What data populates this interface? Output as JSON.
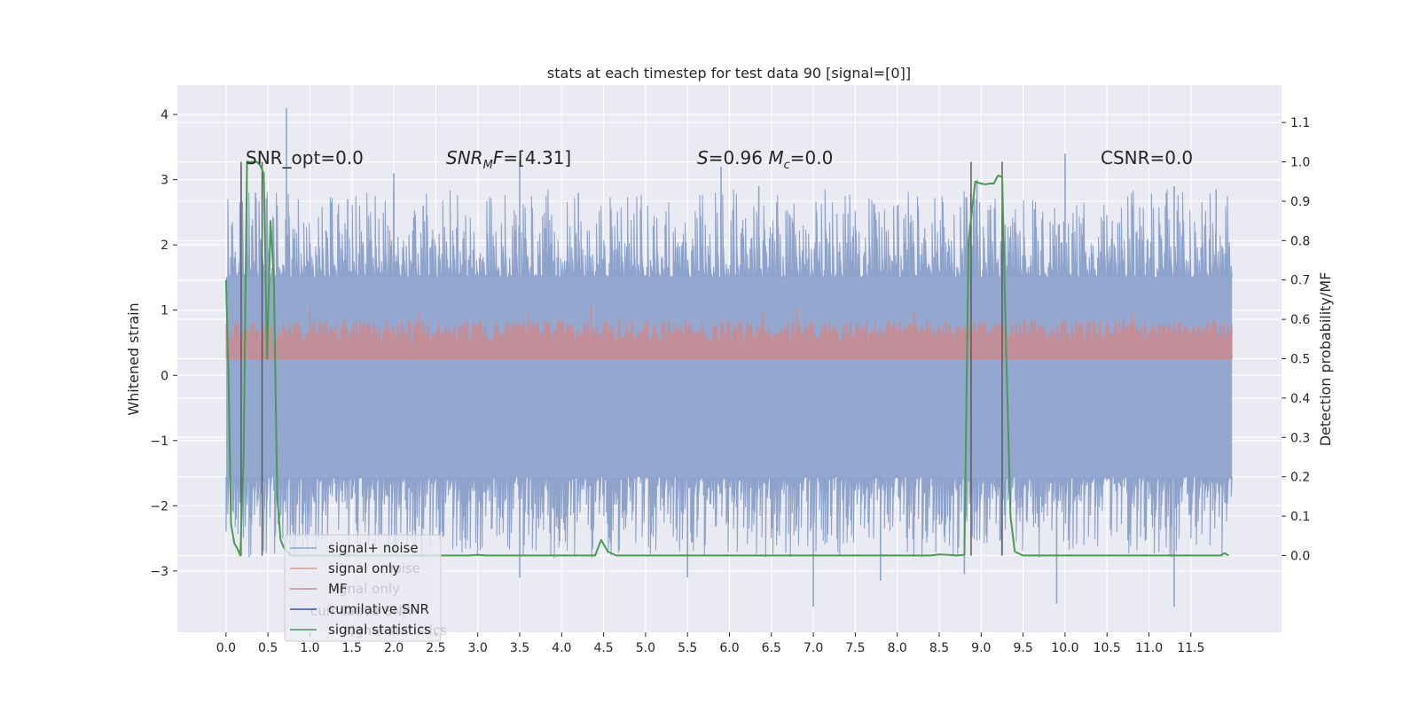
{
  "chart_data": {
    "type": "line",
    "title": "stats at each timestep for test data 90 [signal=[0]]",
    "ylabel": "Whitened strain",
    "y2label": "Detection probability/MF",
    "xlim": [
      -0.58,
      12.58
    ],
    "ylim": [
      -3.94,
      4.45
    ],
    "y2lim": [
      -0.195,
      1.195
    ],
    "x_ticks": [
      0.0,
      0.5,
      1.0,
      1.5,
      2.0,
      2.5,
      3.0,
      3.5,
      4.0,
      4.5,
      5.0,
      5.5,
      6.0,
      6.5,
      7.0,
      7.5,
      8.0,
      8.5,
      9.0,
      9.5,
      10.0,
      10.5,
      11.0,
      11.5
    ],
    "x_tick_labels": [
      "0.0",
      "0.5",
      "1.0",
      "1.5",
      "2.0",
      "2.5",
      "3.0",
      "3.5",
      "4.0",
      "4.5",
      "5.0",
      "5.5",
      "6.0",
      "6.5",
      "7.0",
      "7.5",
      "8.0",
      "8.5",
      "9.0",
      "9.5",
      "10.0",
      "10.5",
      "11.0",
      "11.5"
    ],
    "y_ticks": [
      -3,
      -2,
      -1,
      0,
      1,
      2,
      3,
      4
    ],
    "y_tick_labels": [
      "−3",
      "−2",
      "−1",
      "0",
      "1",
      "2",
      "3",
      "4"
    ],
    "y2_ticks": [
      0.0,
      0.1,
      0.2,
      0.3,
      0.4,
      0.5,
      0.6,
      0.7,
      0.8,
      0.9,
      1.0,
      1.1
    ],
    "y2_tick_labels": [
      "0.0",
      "0.1",
      "0.2",
      "0.3",
      "0.4",
      "0.5",
      "0.6",
      "0.7",
      "0.8",
      "0.9",
      "1.0",
      "1.1"
    ],
    "grid": true,
    "legend_position": "lower-left",
    "legend": [
      {
        "label": "signal+ noise",
        "color": "#8ea3cc"
      },
      {
        "label": "signal only",
        "color": "#dd9d82"
      },
      {
        "label": "MF",
        "color": "#c98b8f"
      },
      {
        "label": "cumilative SNR",
        "color": "#3653a0"
      },
      {
        "label": "signal statistics",
        "color": "#4a9a52"
      }
    ],
    "legend_ghost_labels": [
      "noise",
      "signal only",
      "cumilative SNR",
      "signal statistics"
    ],
    "annotations": [
      {
        "text": "SNR_opt=0.0",
        "x": 0.2,
        "y": 3.25
      },
      {
        "text": "SNR_MF=[4.31]",
        "x": 2.6,
        "y": 3.25
      },
      {
        "text": "S=0.96   M_c=0.0",
        "x": 5.6,
        "y": 3.25
      },
      {
        "text": "CSNR=0.0",
        "x": 10.4,
        "y": 3.25
      }
    ],
    "series": [
      {
        "name": "signal+ noise",
        "axis": "left",
        "color": "#8ea3cc",
        "x_range": [
          0.0,
          11.99
        ],
        "envelope_upper": 1.5,
        "envelope_lower": -1.55,
        "spike_peaks": [
          {
            "x": 0.18,
            "y": 3.2
          },
          {
            "x": 0.25,
            "y": 3.3
          },
          {
            "x": 0.35,
            "y": 2.8
          },
          {
            "x": 0.72,
            "y": 4.1
          },
          {
            "x": 1.45,
            "y": 2.7
          },
          {
            "x": 2.0,
            "y": 3.1
          },
          {
            "x": 2.35,
            "y": 2.6
          },
          {
            "x": 3.5,
            "y": 3.3
          },
          {
            "x": 4.2,
            "y": 2.8
          },
          {
            "x": 5.9,
            "y": 3.2
          },
          {
            "x": 6.35,
            "y": 2.9
          },
          {
            "x": 8.95,
            "y": 3.0
          },
          {
            "x": 10.0,
            "y": 3.4
          },
          {
            "x": 11.3,
            "y": 2.9
          },
          {
            "x": 11.8,
            "y": 2.85
          }
        ],
        "dip_troughs": [
          {
            "x": 0.12,
            "y": -2.2
          },
          {
            "x": 3.5,
            "y": -3.1
          },
          {
            "x": 5.5,
            "y": -3.1
          },
          {
            "x": 7.0,
            "y": -3.55
          },
          {
            "x": 7.8,
            "y": -3.15
          },
          {
            "x": 8.8,
            "y": -3.05
          },
          {
            "x": 9.9,
            "y": -3.5
          },
          {
            "x": 11.3,
            "y": -3.55
          }
        ]
      },
      {
        "name": "MF",
        "axis": "right",
        "color": "#c98b8f",
        "x_range": [
          0.0,
          11.99
        ],
        "baseline": 0.5,
        "typical_max": 0.6,
        "spike_peaks": [
          {
            "x": 1.0,
            "y": 0.63
          },
          {
            "x": 2.3,
            "y": 0.62
          },
          {
            "x": 3.6,
            "y": 0.62
          },
          {
            "x": 4.35,
            "y": 0.63
          },
          {
            "x": 6.4,
            "y": 0.62
          },
          {
            "x": 6.8,
            "y": 0.63
          },
          {
            "x": 8.2,
            "y": 0.62
          },
          {
            "x": 10.8,
            "y": 0.62
          }
        ]
      },
      {
        "name": "signal statistics",
        "axis": "right",
        "color": "#4a9a52",
        "x": [
          0.0,
          0.03,
          0.06,
          0.1,
          0.13,
          0.17,
          0.21,
          0.25,
          0.29,
          0.33,
          0.37,
          0.41,
          0.45,
          0.49,
          0.53,
          0.57,
          0.61,
          0.65,
          0.69,
          0.73,
          0.77,
          0.81,
          0.85,
          0.9,
          1.0,
          1.5,
          2.0,
          2.5,
          2.9,
          3.0,
          3.1,
          3.2,
          4.0,
          4.4,
          4.47,
          4.55,
          4.65,
          5.0,
          6.0,
          7.0,
          8.0,
          8.4,
          8.5,
          8.6,
          8.7,
          8.8,
          8.85,
          8.93,
          9.0,
          9.05,
          9.1,
          9.15,
          9.2,
          9.25,
          9.3,
          9.35,
          9.4,
          9.5,
          10.0,
          11.0,
          11.5,
          11.85,
          11.9,
          11.95
        ],
        "y": [
          0.7,
          0.45,
          0.08,
          0.03,
          0.02,
          0.0,
          0.25,
          1.0,
          1.0,
          1.0,
          1.0,
          0.99,
          0.97,
          0.5,
          0.85,
          0.7,
          0.15,
          0.04,
          0.02,
          0.01,
          0.0,
          0.0,
          0.0,
          0.0,
          0.0,
          0.0,
          0.0,
          0.0,
          0.0,
          0.002,
          0.0,
          0.0,
          0.0,
          0.0,
          0.04,
          0.01,
          0.0,
          0.0,
          0.0,
          0.0,
          0.0,
          0.0,
          0.003,
          0.002,
          0.0,
          0.002,
          0.8,
          0.95,
          0.945,
          0.943,
          0.945,
          0.945,
          0.965,
          0.962,
          0.5,
          0.1,
          0.01,
          0.0,
          0.0,
          0.0,
          0.0,
          0.0,
          0.006,
          0.0
        ]
      }
    ],
    "vertical_lines": [
      0.18,
      0.43,
      8.88,
      9.25
    ]
  }
}
